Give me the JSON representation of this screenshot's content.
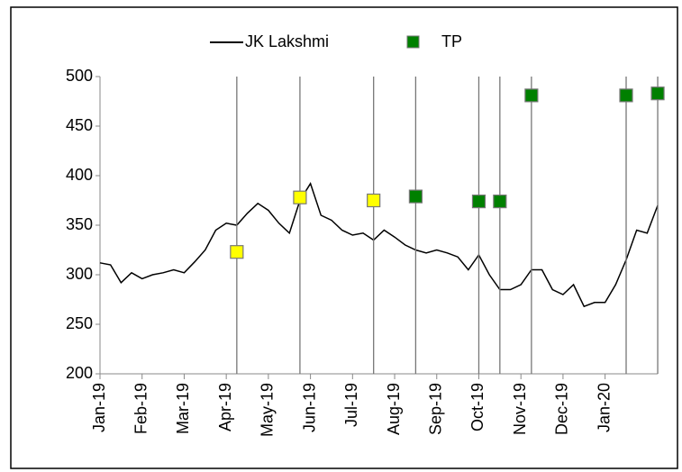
{
  "chart_data": {
    "type": "line",
    "categories": [
      "Jan-19",
      null,
      null,
      null,
      "Feb-19",
      null,
      null,
      null,
      "Mar-19",
      null,
      null,
      null,
      "Apr-19",
      null,
      null,
      null,
      "May-19",
      null,
      null,
      null,
      "Jun-19",
      null,
      null,
      null,
      "Jul-19",
      null,
      null,
      null,
      "Aug-19",
      null,
      null,
      null,
      "Sep-19",
      null,
      null,
      null,
      "Oct-19",
      null,
      null,
      null,
      "Nov-19",
      null,
      null,
      null,
      "Dec-19",
      null,
      null,
      null,
      "Jan-20",
      null,
      null,
      null,
      null,
      null
    ],
    "series": [
      {
        "name": "JK Lakshmi",
        "color": "#000000",
        "values": [
          312,
          310,
          292,
          302,
          296,
          300,
          302,
          305,
          302,
          313,
          325,
          345,
          352,
          350,
          362,
          372,
          365,
          352,
          342,
          375,
          392,
          360,
          355,
          345,
          340,
          342,
          335,
          345,
          338,
          330,
          325,
          322,
          325,
          322,
          318,
          305,
          320,
          300,
          285,
          285,
          290,
          305,
          305,
          285,
          280,
          290,
          268,
          272,
          272,
          290,
          315,
          345,
          342,
          370
        ]
      },
      {
        "name": "TP",
        "color": "#008000",
        "marker": "square",
        "point_colors": {
          "13": "#ffff00",
          "19": "#ffff00",
          "26": "#ffff00"
        },
        "values": [
          null,
          null,
          null,
          null,
          null,
          null,
          null,
          null,
          null,
          null,
          null,
          null,
          null,
          323,
          null,
          null,
          null,
          null,
          null,
          378,
          null,
          null,
          null,
          null,
          null,
          null,
          375,
          null,
          null,
          null,
          379,
          null,
          null,
          null,
          null,
          null,
          374,
          null,
          374,
          null,
          null,
          481,
          null,
          null,
          null,
          null,
          null,
          null,
          null,
          null,
          481,
          null,
          null,
          483
        ]
      }
    ],
    "ylim": [
      200,
      500
    ],
    "yticks": [
      200,
      250,
      300,
      350,
      400,
      450,
      500
    ],
    "legend": "top"
  }
}
